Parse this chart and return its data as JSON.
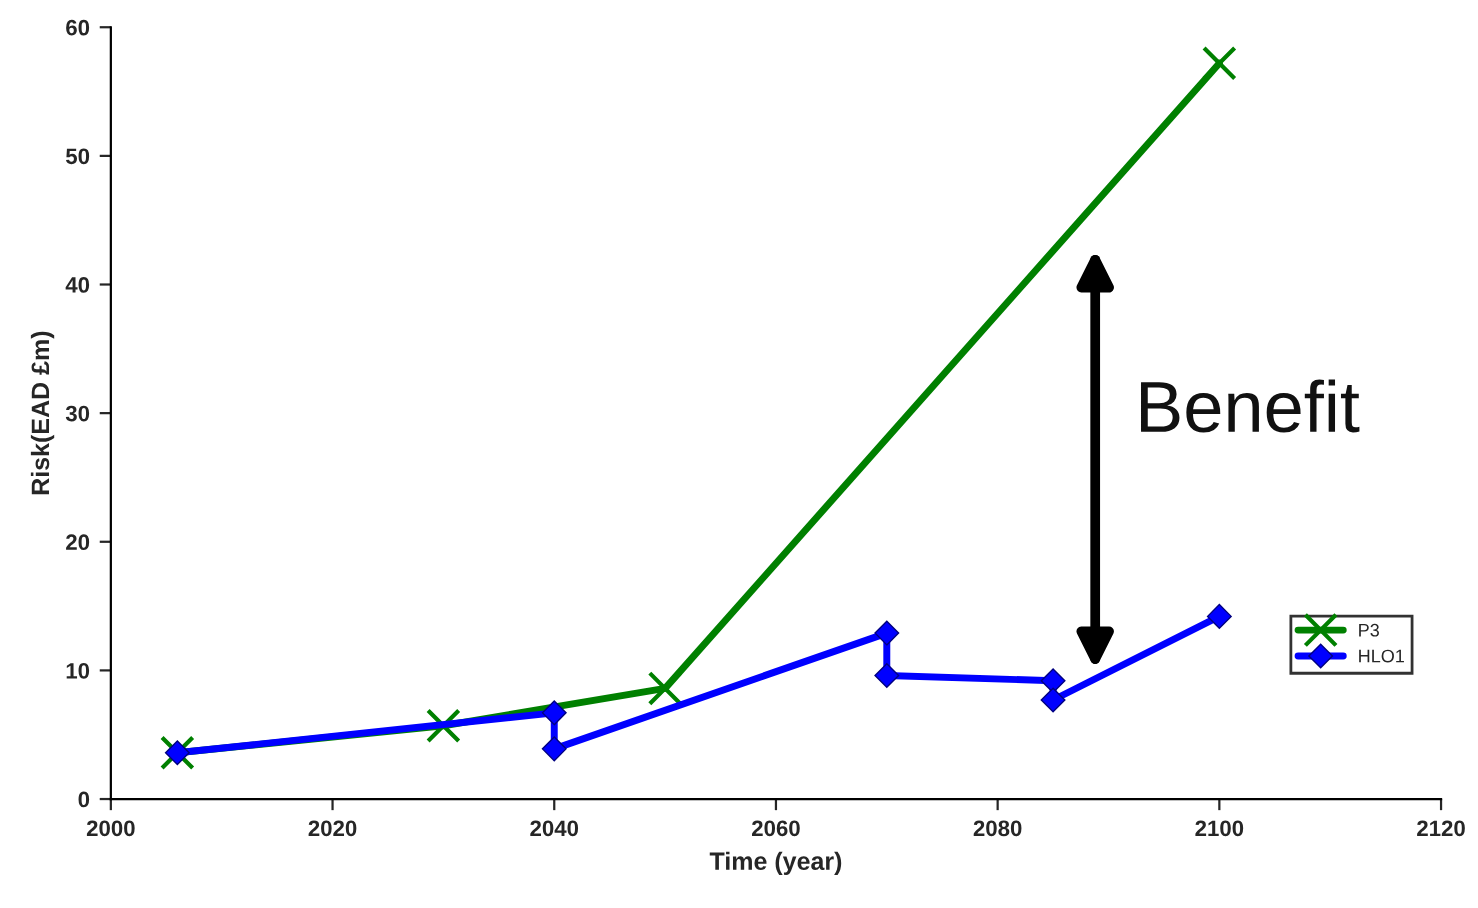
{
  "chart_data": {
    "type": "line",
    "xlabel": "Time (year)",
    "ylabel": "Risk(EAD £m)",
    "series": [
      {
        "name": "P3",
        "color": "#008000",
        "marker": "cross",
        "x": [
          2006,
          2030,
          2050,
          2100
        ],
        "values": [
          3.6,
          5.7,
          8.6,
          57.2
        ]
      },
      {
        "name": "HLO1",
        "color": "#0000ff",
        "marker": "diamond",
        "x": [
          2006,
          2040,
          2040,
          2070,
          2070,
          2085,
          2085,
          2100
        ],
        "values": [
          3.6,
          6.7,
          3.9,
          12.9,
          9.6,
          9.2,
          7.7,
          14.2
        ]
      }
    ],
    "xlim": [
      2000,
      2120
    ],
    "xticks": [
      2000,
      2020,
      2040,
      2060,
      2080,
      2100,
      2120
    ],
    "ylim": [
      0,
      60
    ],
    "yticks": [
      0,
      10,
      20,
      30,
      40,
      50,
      60
    ],
    "grid": false,
    "legend": "right",
    "annotations": [
      "Benefit"
    ]
  }
}
